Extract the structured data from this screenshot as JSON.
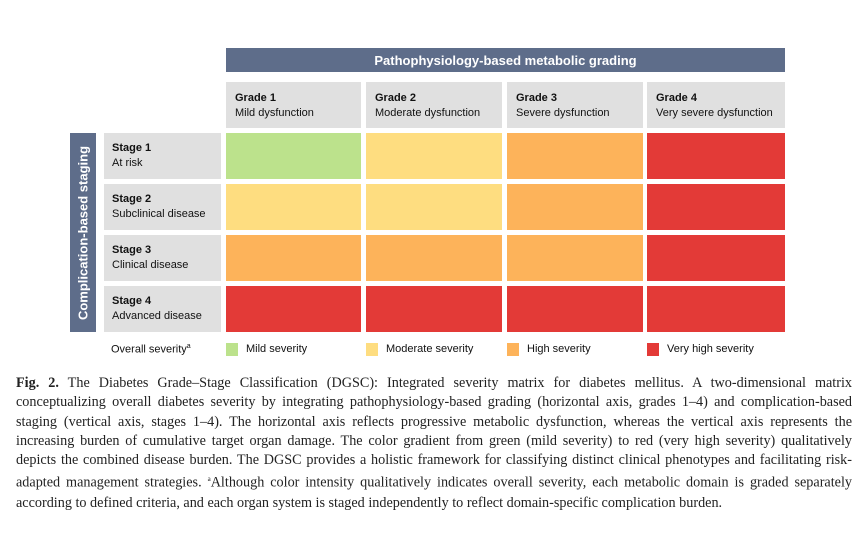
{
  "chart_data": {
    "type": "heatmap",
    "title": "Pathophysiology-based metabolic grading",
    "xlabel": "Pathophysiology-based metabolic grading",
    "ylabel": "Complication-based staging",
    "columns": [
      {
        "label": "Grade 1",
        "desc": "Mild dysfunction"
      },
      {
        "label": "Grade 2",
        "desc": "Moderate dysfunction"
      },
      {
        "label": "Grade 3",
        "desc": "Severe dysfunction"
      },
      {
        "label": "Grade 4",
        "desc": "Very severe dysfunction"
      }
    ],
    "rows": [
      {
        "label": "Stage 1",
        "desc": "At risk"
      },
      {
        "label": "Stage 2",
        "desc": "Subclinical disease"
      },
      {
        "label": "Stage 3",
        "desc": "Clinical disease"
      },
      {
        "label": "Stage 4",
        "desc": "Advanced disease"
      }
    ],
    "severity_matrix": [
      [
        "mild",
        "moderate",
        "high",
        "very_high"
      ],
      [
        "moderate",
        "moderate",
        "high",
        "very_high"
      ],
      [
        "high",
        "high",
        "high",
        "very_high"
      ],
      [
        "very_high",
        "very_high",
        "very_high",
        "very_high"
      ]
    ],
    "legend": {
      "title": "Overall severity",
      "title_sup": "a",
      "items": [
        {
          "key": "mild",
          "label": "Mild severity",
          "color": "#bce28c"
        },
        {
          "key": "moderate",
          "label": "Moderate severity",
          "color": "#fedd80"
        },
        {
          "key": "high",
          "label": "High severity",
          "color": "#fdb35a"
        },
        {
          "key": "very_high",
          "label": "Very high severity",
          "color": "#e33a37"
        }
      ]
    }
  },
  "caption": {
    "label": "Fig. 2.",
    "text": " The Diabetes Grade–Stage Classification (DGSC): Integrated severity matrix for diabetes mellitus. A two-dimensional matrix conceptualizing overall diabetes severity by integrating pathophysiology-based grading (horizontal axis, grades 1–4) and complication-based staging (vertical axis, stages 1–4). The horizontal axis reflects progressive metabolic dysfunction, whereas the vertical axis represents the increasing burden of cumulative target organ damage. The color gradient from green (mild severity) to red (very high severity) qualitatively depicts the combined disease burden. The DGSC provides a holistic framework for classifying distinct clinical phenotypes and facilitating risk-adapted management strategies. ",
    "footnote_mark": "a",
    "footnote": "Although color intensity qualitatively indicates overall severity, each metabolic domain is graded separately according to defined criteria, and each organ system is staged independently to reflect domain-specific complication burden."
  }
}
